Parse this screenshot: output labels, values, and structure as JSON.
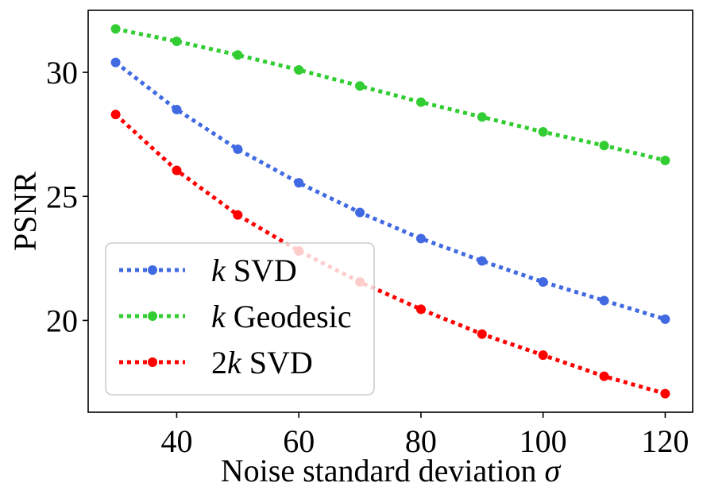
{
  "chart_data": {
    "type": "line",
    "title": "",
    "xlabel": "Noise standard deviation",
    "xlabel_symbol": "σ",
    "ylabel": "PSNR",
    "x": [
      30,
      40,
      50,
      60,
      70,
      80,
      90,
      100,
      110,
      120
    ],
    "xlim": [
      25.5,
      124.5
    ],
    "ylim": [
      16.3,
      32.5
    ],
    "xticks": [
      "40",
      "60",
      "80",
      "100",
      "120"
    ],
    "yticks": [
      "20",
      "25",
      "30"
    ],
    "grid": false,
    "legend_position": "lower-left",
    "series": [
      {
        "name": "k SVD",
        "legend_italic": "k",
        "legend_rest": " SVD",
        "color": "#4169e1",
        "linestyle": "dotted",
        "marker": "circle",
        "values": [
          30.4,
          28.5,
          26.9,
          25.55,
          24.35,
          23.3,
          22.4,
          21.55,
          20.8,
          20.05
        ]
      },
      {
        "name": "k Geodesic",
        "legend_italic": "k",
        "legend_rest": " Geodesic",
        "color": "#32cd32",
        "linestyle": "dotted",
        "marker": "circle",
        "values": [
          31.75,
          31.25,
          30.7,
          30.1,
          29.45,
          28.8,
          28.2,
          27.6,
          27.05,
          26.45
        ]
      },
      {
        "name": "2k SVD",
        "legend_prefix": "2",
        "legend_italic": "k",
        "legend_rest": " SVD",
        "color": "#ff0000",
        "linestyle": "dotted",
        "marker": "circle",
        "values": [
          28.3,
          26.05,
          24.25,
          22.8,
          21.55,
          20.45,
          19.45,
          18.6,
          17.75,
          17.05
        ]
      }
    ]
  }
}
